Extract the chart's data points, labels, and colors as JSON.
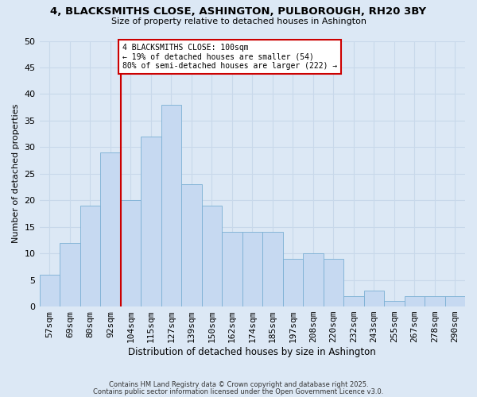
{
  "title": "4, BLACKSMITHS CLOSE, ASHINGTON, PULBOROUGH, RH20 3BY",
  "subtitle": "Size of property relative to detached houses in Ashington",
  "xlabel": "Distribution of detached houses by size in Ashington",
  "ylabel": "Number of detached properties",
  "bar_labels": [
    "57sqm",
    "69sqm",
    "80sqm",
    "92sqm",
    "104sqm",
    "115sqm",
    "127sqm",
    "139sqm",
    "150sqm",
    "162sqm",
    "174sqm",
    "185sqm",
    "197sqm",
    "208sqm",
    "220sqm",
    "232sqm",
    "243sqm",
    "255sqm",
    "267sqm",
    "278sqm",
    "290sqm"
  ],
  "bar_heights": [
    6,
    12,
    19,
    29,
    20,
    32,
    38,
    23,
    19,
    14,
    14,
    14,
    9,
    10,
    9,
    2,
    3,
    1,
    2,
    2,
    2
  ],
  "bar_color": "#c6d9f1",
  "bar_edge_color": "#7bafd4",
  "vline_color": "#cc0000",
  "vline_index": 3.5,
  "annotation_text": "4 BLACKSMITHS CLOSE: 100sqm\n← 19% of detached houses are smaller (54)\n80% of semi-detached houses are larger (222) →",
  "annotation_box_facecolor": "#ffffff",
  "annotation_box_edgecolor": "#cc0000",
  "ylim": [
    0,
    50
  ],
  "yticks": [
    0,
    5,
    10,
    15,
    20,
    25,
    30,
    35,
    40,
    45,
    50
  ],
  "grid_color": "#c8d8ea",
  "background_color": "#dce8f5",
  "footer_line1": "Contains HM Land Registry data © Crown copyright and database right 2025.",
  "footer_line2": "Contains public sector information licensed under the Open Government Licence v3.0."
}
